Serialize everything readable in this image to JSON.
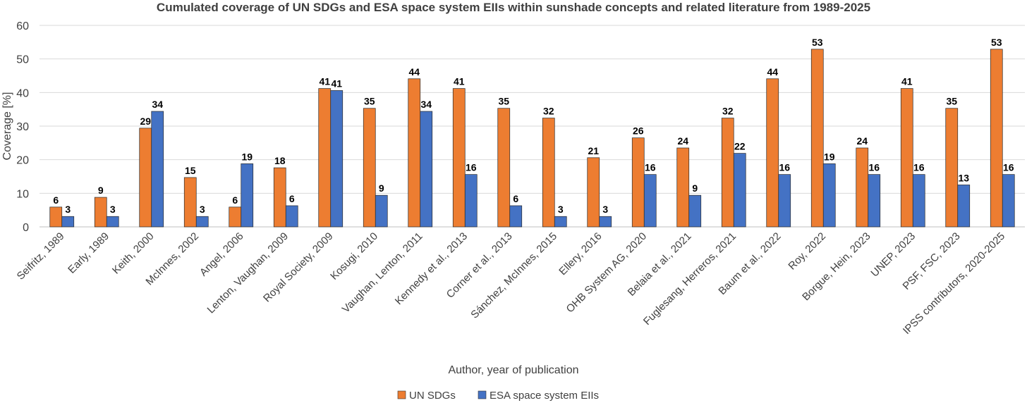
{
  "chart_data": {
    "type": "bar",
    "title": "Cumulated coverage of UN SDGs and ESA space system EIIs within sunshade concepts and related literature from 1989-2025",
    "xlabel": "Author, year of publication",
    "ylabel": "Coverage [%]",
    "ylim": [
      0,
      60
    ],
    "yticks": [
      0,
      10,
      20,
      30,
      40,
      50,
      60
    ],
    "grid": true,
    "legend_position": "bottom",
    "categories": [
      "Seifritz, 1989",
      "Early, 1989",
      "Keith, 2000",
      "McInnes, 2002",
      "Angel, 2006",
      "Lenton, Vaughan, 2009",
      "Royal Society, 2009",
      "Kosugi, 2010",
      "Vaughan, Lenton, 2011",
      "Kennedy et al., 2013",
      "Corner et al., 2013",
      "Sánchez, McInnes, 2015",
      "Ellery, 2016",
      "OHB System AG, 2020",
      "Belaia et al., 2021",
      "Fuglesang, Herreros, 2021",
      "Baum et al., 2022",
      "Roy, 2022",
      "Borgue, Hein, 2023",
      "UNEP, 2023",
      "PSF, FSC, 2023",
      "IPSS contributors, 2020-2025"
    ],
    "series": [
      {
        "name": "UN SDGs",
        "color": "#ED7D31",
        "values": [
          5.9,
          8.8,
          29.4,
          14.7,
          5.9,
          17.6,
          41.2,
          35.3,
          44.1,
          41.2,
          35.3,
          32.4,
          20.6,
          26.5,
          23.5,
          32.4,
          44.1,
          52.9,
          23.5,
          41.2,
          35.3,
          52.9
        ],
        "labels": [
          "6",
          "9",
          "29",
          "15",
          "6",
          "18",
          "41",
          "35",
          "44",
          "41",
          "35",
          "32",
          "21",
          "26",
          "24",
          "32",
          "44",
          "53",
          "24",
          "41",
          "35",
          "53"
        ]
      },
      {
        "name": "ESA space system EIIs",
        "color": "#4472C4",
        "values": [
          3.1,
          3.1,
          34.4,
          3.1,
          18.8,
          6.3,
          40.6,
          9.4,
          34.4,
          15.6,
          6.3,
          3.1,
          3.1,
          15.6,
          9.4,
          21.9,
          15.6,
          18.8,
          15.6,
          15.6,
          12.5,
          15.6
        ],
        "labels": [
          "3",
          "3",
          "34",
          "3",
          "19",
          "6",
          "41",
          "9",
          "34",
          "16",
          "6",
          "3",
          "3",
          "16",
          "9",
          "22",
          "16",
          "19",
          "16",
          "16",
          "13",
          "16"
        ]
      }
    ]
  }
}
